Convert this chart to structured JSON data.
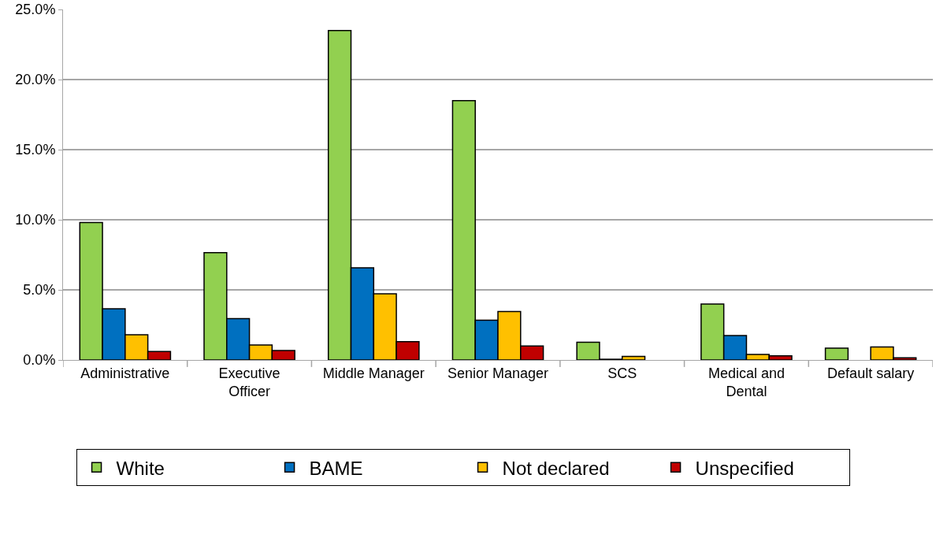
{
  "chart_data": {
    "type": "bar",
    "categories": [
      "Administrative",
      "Executive Officer",
      "Middle Manager",
      "Senior Manager",
      "SCS",
      "Medical and Dental",
      "Default salary"
    ],
    "series": [
      {
        "name": "White",
        "color": "#92d050",
        "values": [
          9.8,
          7.65,
          23.5,
          18.5,
          1.26,
          3.99,
          0.84
        ]
      },
      {
        "name": "BAME",
        "color": "#0070c0",
        "values": [
          3.65,
          2.95,
          6.57,
          2.84,
          0.05,
          1.74,
          null
        ]
      },
      {
        "name": "Not declared",
        "color": "#ffc000",
        "values": [
          1.8,
          1.07,
          4.72,
          3.45,
          0.25,
          0.4,
          0.93
        ]
      },
      {
        "name": "Unspecified",
        "color": "#c00000",
        "values": [
          0.6,
          0.67,
          1.3,
          1.0,
          null,
          0.3,
          0.15
        ]
      }
    ],
    "ylim": [
      0,
      25
    ],
    "yticks": [
      {
        "value": 0,
        "label": "0.0%"
      },
      {
        "value": 5,
        "label": "5.0%"
      },
      {
        "value": 10,
        "label": "10.0%"
      },
      {
        "value": 15,
        "label": "15.0%"
      },
      {
        "value": 20,
        "label": "20.0%"
      },
      {
        "value": 25,
        "label": "25.0%"
      }
    ],
    "grid": "y",
    "legend": "bottom"
  }
}
